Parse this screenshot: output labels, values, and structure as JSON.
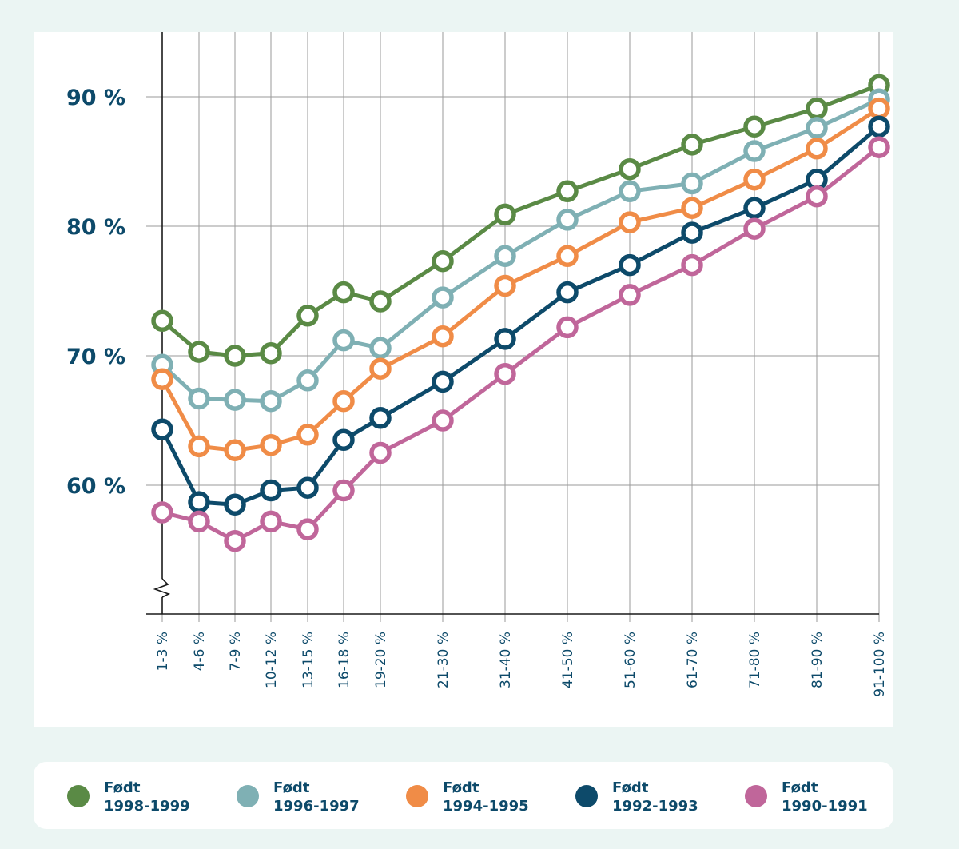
{
  "chart_data": {
    "type": "line",
    "title": "",
    "xlabel": "",
    "ylabel": "",
    "categories": [
      "1-3 %",
      "4-6 %",
      "7-9 %",
      "10-12 %",
      "13-15 %",
      "16-18 %",
      "19-20 %",
      "21-30 %",
      "31-40 %",
      "41-50 %",
      "51-60 %",
      "61-70 %",
      "71-80 %",
      "81-90 %",
      "91-100 %"
    ],
    "yticks": [
      {
        "value": 60,
        "label": "60 %"
      },
      {
        "value": 70,
        "label": "70 %"
      },
      {
        "value": 80,
        "label": "80 %"
      },
      {
        "value": 90,
        "label": "90 %"
      }
    ],
    "ylim": [
      50,
      95
    ],
    "y_axis_break": true,
    "grid": true,
    "legend_position": "bottom",
    "series": [
      {
        "label_line1": "Født",
        "label_line2": "1998-1999",
        "color": "#5a8a45",
        "values": [
          72.7,
          70.3,
          70.0,
          70.2,
          73.1,
          74.9,
          74.2,
          77.3,
          80.9,
          82.7,
          84.4,
          86.3,
          87.7,
          89.1,
          90.9
        ]
      },
      {
        "label_line1": "Født",
        "label_line2": "1996-1997",
        "color": "#7fb0b4",
        "values": [
          69.3,
          66.7,
          66.6,
          66.5,
          68.1,
          71.2,
          70.6,
          74.5,
          77.7,
          80.5,
          82.7,
          83.3,
          85.8,
          87.6,
          89.8
        ]
      },
      {
        "label_line1": "Født",
        "label_line2": "1994-1995",
        "color": "#f08c47",
        "values": [
          68.2,
          63.0,
          62.7,
          63.1,
          63.9,
          66.5,
          69.0,
          71.5,
          75.4,
          77.7,
          80.3,
          81.4,
          83.6,
          86.0,
          89.1
        ]
      },
      {
        "label_line1": "Født",
        "label_line2": "1992-1993",
        "color": "#0d4a6a",
        "values": [
          64.3,
          58.7,
          58.5,
          59.6,
          59.8,
          63.5,
          65.2,
          68.0,
          71.3,
          74.9,
          77.0,
          79.5,
          81.4,
          83.6,
          87.7
        ]
      },
      {
        "label_line1": "Født",
        "label_line2": "1990-1991",
        "color": "#c0669a",
        "values": [
          57.9,
          57.2,
          55.7,
          57.2,
          56.6,
          59.6,
          62.5,
          65.0,
          68.6,
          72.2,
          74.7,
          77.0,
          79.8,
          82.3,
          86.1
        ]
      }
    ]
  }
}
